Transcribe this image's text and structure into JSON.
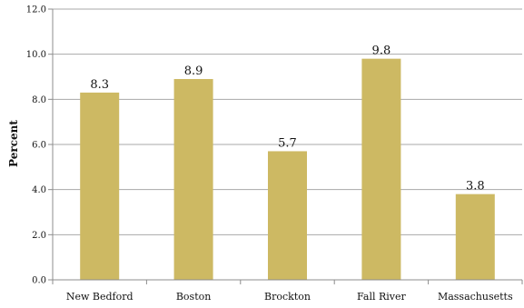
{
  "chart_data": {
    "type": "bar",
    "title": "",
    "xlabel": "",
    "ylabel": "Percent",
    "categories": [
      "New Bedford",
      "Boston",
      "Brockton",
      "Fall River",
      "Massachusetts"
    ],
    "values": [
      8.3,
      8.9,
      5.7,
      9.8,
      3.8
    ],
    "value_labels": [
      "8.3",
      "8.9",
      "5.7",
      "9.8",
      "3.8"
    ],
    "ylim": [
      0,
      12
    ],
    "yticks": [
      0,
      2,
      4,
      6,
      8,
      10,
      12
    ],
    "ytick_labels": [
      "0.0",
      "2.0",
      "4.0",
      "6.0",
      "8.0",
      "10.0",
      "12.0"
    ],
    "grid": true,
    "legend": "none",
    "colors": {
      "bar": "#CDB963",
      "gridline": "#a8a8a8",
      "axis": "#8c8c8c"
    }
  }
}
